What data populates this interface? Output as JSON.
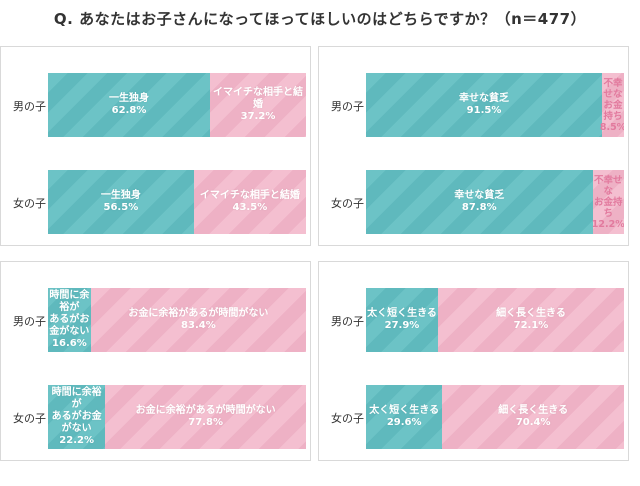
{
  "title": "Q. あなたはお子さんになってほってほしいのはどちらですか？（n＝477）",
  "chart_data": [
    {
      "type": "bar",
      "stacked": true,
      "orientation": "horizontal",
      "categories": [
        "男の子",
        "女の子"
      ],
      "series": [
        {
          "name": "一生独身",
          "values": [
            62.8,
            56.5
          ],
          "labels": [
            "62.8%",
            "56.5%"
          ],
          "color": "#6cc3c6"
        },
        {
          "name": "イマイチな相手と結婚",
          "values": [
            37.2,
            43.5
          ],
          "labels": [
            "37.2%",
            "43.5%"
          ],
          "color": "#f4bfd0"
        }
      ]
    },
    {
      "type": "bar",
      "stacked": true,
      "orientation": "horizontal",
      "categories": [
        "男の子",
        "女の子"
      ],
      "series": [
        {
          "name": "幸せな貧乏",
          "values": [
            91.5,
            87.8
          ],
          "labels": [
            "91.5%",
            "87.8%"
          ],
          "color": "#6cc3c6"
        },
        {
          "name": "不幸せな\nお金持ち",
          "values": [
            8.5,
            12.2
          ],
          "labels": [
            "8.5%",
            "12.2%"
          ],
          "color": "#f4bfd0"
        }
      ]
    },
    {
      "type": "bar",
      "stacked": true,
      "orientation": "horizontal",
      "categories": [
        "男の子",
        "女の子"
      ],
      "series": [
        {
          "name": "時間に余裕が\nあるがお金がない",
          "values": [
            16.6,
            22.2
          ],
          "labels": [
            "16.6%",
            "22.2%"
          ],
          "color": "#6cc3c6"
        },
        {
          "name": "お金に余裕があるが時間がない",
          "values": [
            83.4,
            77.8
          ],
          "labels": [
            "83.4%",
            "77.8%"
          ],
          "color": "#f4bfd0"
        }
      ]
    },
    {
      "type": "bar",
      "stacked": true,
      "orientation": "horizontal",
      "categories": [
        "男の子",
        "女の子"
      ],
      "series": [
        {
          "name": "太く短く生きる",
          "values": [
            27.9,
            29.6
          ],
          "labels": [
            "27.9%",
            "29.6%"
          ],
          "color": "#6cc3c6"
        },
        {
          "name": "細く長く生きる",
          "values": [
            72.1,
            70.4
          ],
          "labels": [
            "72.1%",
            "70.4%"
          ],
          "color": "#f4bfd0"
        }
      ]
    }
  ]
}
